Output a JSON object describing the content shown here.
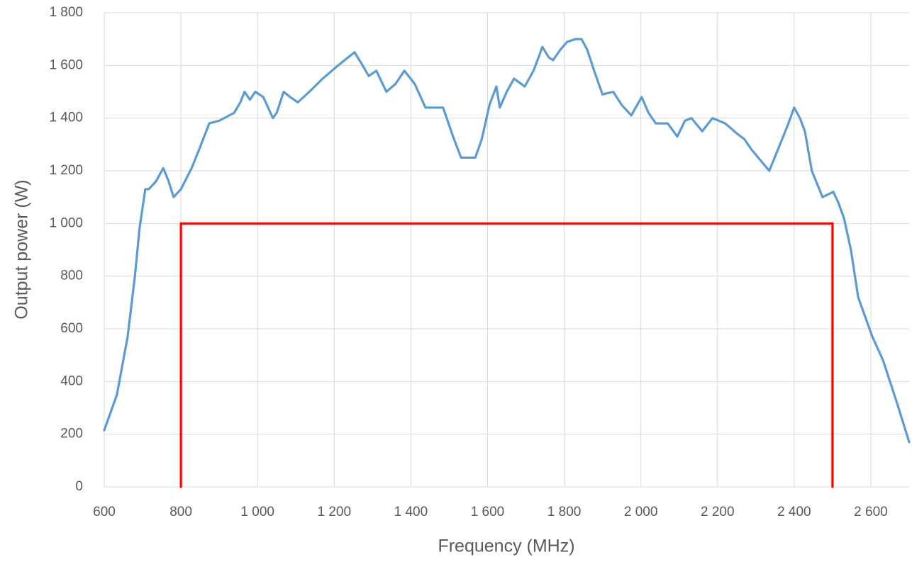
{
  "chart_data": {
    "type": "line",
    "x_label": "Frequency (MHz)",
    "y_label": "Output power (W)",
    "xlim": [
      600,
      2700
    ],
    "ylim": [
      0,
      1800
    ],
    "xticks": [
      600,
      800,
      {
        "value": 1000,
        "label": "1 000"
      },
      {
        "value": 1200,
        "label": "1 200"
      },
      {
        "value": 1400,
        "label": "1 400"
      },
      {
        "value": 1600,
        "label": "1 600"
      },
      {
        "value": 1800,
        "label": "1 800"
      },
      {
        "value": 2000,
        "label": "2 000"
      },
      {
        "value": 2200,
        "label": "2 200"
      },
      {
        "value": 2400,
        "label": "2 400"
      },
      {
        "value": 2600,
        "label": "2 600"
      }
    ],
    "yticks": [
      0,
      200,
      400,
      600,
      800,
      {
        "value": 1000,
        "label": "1 000"
      },
      {
        "value": 1200,
        "label": "1 200"
      },
      {
        "value": 1400,
        "label": "1 400"
      },
      {
        "value": 1600,
        "label": "1 600"
      },
      {
        "value": 1800,
        "label": "1 800"
      }
    ],
    "grid": true,
    "series": [
      {
        "color": "#5b9bd5",
        "x": [
          600,
          633,
          661,
          680,
          692,
          707,
          716,
          735,
          754,
          768,
          781,
          800,
          828,
          850,
          874,
          900,
          939,
          955,
          966,
          980,
          994,
          1015,
          1040,
          1050,
          1068,
          1085,
          1105,
          1135,
          1170,
          1210,
          1253,
          1270,
          1290,
          1310,
          1336,
          1360,
          1383,
          1410,
          1438,
          1460,
          1484,
          1510,
          1531,
          1550,
          1568,
          1585,
          1605,
          1623,
          1632,
          1650,
          1669,
          1697,
          1720,
          1743,
          1760,
          1771,
          1790,
          1808,
          1830,
          1845,
          1860,
          1878,
          1900,
          1928,
          1950,
          1975,
          2002,
          2020,
          2039,
          2070,
          2095,
          2115,
          2132,
          2160,
          2187,
          2220,
          2252,
          2270,
          2289,
          2335,
          2363,
          2385,
          2400,
          2415,
          2428,
          2446,
          2474,
          2502,
          2515,
          2530,
          2548,
          2567,
          2604,
          2632,
          2668,
          2700
        ],
        "values": [
          215,
          350,
          570,
          800,
          980,
          1130,
          1130,
          1160,
          1210,
          1160,
          1100,
          1130,
          1210,
          1290,
          1380,
          1390,
          1420,
          1460,
          1500,
          1470,
          1500,
          1480,
          1400,
          1420,
          1500,
          1480,
          1460,
          1500,
          1550,
          1600,
          1650,
          1610,
          1560,
          1580,
          1500,
          1530,
          1580,
          1530,
          1440,
          1440,
          1440,
          1330,
          1250,
          1250,
          1250,
          1320,
          1450,
          1520,
          1440,
          1500,
          1550,
          1520,
          1580,
          1670,
          1630,
          1620,
          1660,
          1690,
          1700,
          1700,
          1660,
          1580,
          1490,
          1500,
          1450,
          1410,
          1480,
          1420,
          1380,
          1380,
          1330,
          1390,
          1400,
          1350,
          1400,
          1380,
          1340,
          1320,
          1280,
          1200,
          1300,
          1380,
          1440,
          1400,
          1350,
          1200,
          1100,
          1120,
          1080,
          1020,
          900,
          720,
          570,
          480,
          320,
          170
        ]
      },
      {
        "color": "#ff0000",
        "x": [
          800,
          800,
          2500,
          2500
        ],
        "values": [
          0,
          1000,
          1000,
          0
        ]
      }
    ]
  }
}
